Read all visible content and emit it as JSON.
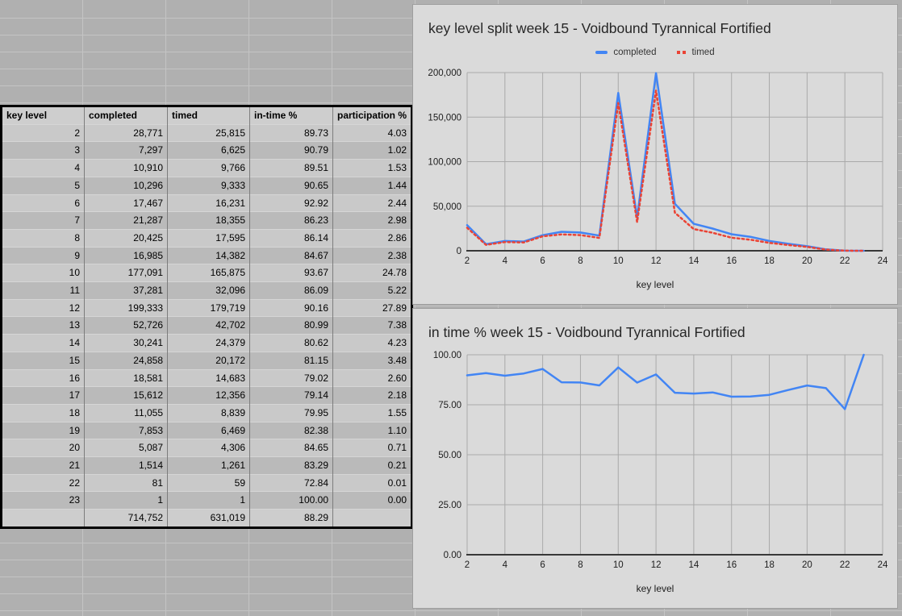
{
  "table": {
    "headers": [
      "key level",
      "completed",
      "timed",
      "in-time %",
      "participation %"
    ],
    "rows": [
      [
        "2",
        "28,771",
        "25,815",
        "89.73",
        "4.03"
      ],
      [
        "3",
        "7,297",
        "6,625",
        "90.79",
        "1.02"
      ],
      [
        "4",
        "10,910",
        "9,766",
        "89.51",
        "1.53"
      ],
      [
        "5",
        "10,296",
        "9,333",
        "90.65",
        "1.44"
      ],
      [
        "6",
        "17,467",
        "16,231",
        "92.92",
        "2.44"
      ],
      [
        "7",
        "21,287",
        "18,355",
        "86.23",
        "2.98"
      ],
      [
        "8",
        "20,425",
        "17,595",
        "86.14",
        "2.86"
      ],
      [
        "9",
        "16,985",
        "14,382",
        "84.67",
        "2.38"
      ],
      [
        "10",
        "177,091",
        "165,875",
        "93.67",
        "24.78"
      ],
      [
        "11",
        "37,281",
        "32,096",
        "86.09",
        "5.22"
      ],
      [
        "12",
        "199,333",
        "179,719",
        "90.16",
        "27.89"
      ],
      [
        "13",
        "52,726",
        "42,702",
        "80.99",
        "7.38"
      ],
      [
        "14",
        "30,241",
        "24,379",
        "80.62",
        "4.23"
      ],
      [
        "15",
        "24,858",
        "20,172",
        "81.15",
        "3.48"
      ],
      [
        "16",
        "18,581",
        "14,683",
        "79.02",
        "2.60"
      ],
      [
        "17",
        "15,612",
        "12,356",
        "79.14",
        "2.18"
      ],
      [
        "18",
        "11,055",
        "8,839",
        "79.95",
        "1.55"
      ],
      [
        "19",
        "7,853",
        "6,469",
        "82.38",
        "1.10"
      ],
      [
        "20",
        "5,087",
        "4,306",
        "84.65",
        "0.71"
      ],
      [
        "21",
        "1,514",
        "1,261",
        "83.29",
        "0.21"
      ],
      [
        "22",
        "81",
        "59",
        "72.84",
        "0.01"
      ],
      [
        "23",
        "1",
        "1",
        "100.00",
        "0.00"
      ]
    ],
    "total_row": [
      "",
      "714,752",
      "631,019",
      "88.29",
      ""
    ]
  },
  "chart_data": [
    {
      "type": "line",
      "title": "key level split week 15 - Voidbound Tyrannical Fortified",
      "xlabel": "key level",
      "legend_position": "top",
      "grid": true,
      "x": [
        2,
        3,
        4,
        5,
        6,
        7,
        8,
        9,
        10,
        11,
        12,
        13,
        14,
        15,
        16,
        17,
        18,
        19,
        20,
        21,
        22,
        23
      ],
      "xticks": [
        2,
        4,
        6,
        8,
        10,
        12,
        14,
        16,
        18,
        20,
        22,
        24
      ],
      "xlim": [
        2,
        24
      ],
      "ylim": [
        0,
        200000
      ],
      "yticks": [
        {
          "value": 0,
          "label": "0"
        },
        {
          "value": 50000,
          "label": "50,000"
        },
        {
          "value": 100000,
          "label": "100,000"
        },
        {
          "value": 150000,
          "label": "150,000"
        },
        {
          "value": 200000,
          "label": "200,000"
        }
      ],
      "series": [
        {
          "name": "completed",
          "color": "#4285f4",
          "style": "solid",
          "values": [
            28771,
            7297,
            10910,
            10296,
            17467,
            21287,
            20425,
            16985,
            177091,
            37281,
            199333,
            52726,
            30241,
            24858,
            18581,
            15612,
            11055,
            7853,
            5087,
            1514,
            81,
            1
          ]
        },
        {
          "name": "timed",
          "color": "#ea4335",
          "style": "dotted",
          "values": [
            25815,
            6625,
            9766,
            9333,
            16231,
            18355,
            17595,
            14382,
            165875,
            32096,
            179719,
            42702,
            24379,
            20172,
            14683,
            12356,
            8839,
            6469,
            4306,
            1261,
            59,
            1
          ]
        }
      ]
    },
    {
      "type": "line",
      "title": "in time % week 15 - Voidbound Tyrannical Fortified",
      "xlabel": "key level",
      "legend_position": "none",
      "grid": true,
      "x": [
        2,
        3,
        4,
        5,
        6,
        7,
        8,
        9,
        10,
        11,
        12,
        13,
        14,
        15,
        16,
        17,
        18,
        19,
        20,
        21,
        22,
        23
      ],
      "xticks": [
        2,
        4,
        6,
        8,
        10,
        12,
        14,
        16,
        18,
        20,
        22,
        24
      ],
      "xlim": [
        2,
        24
      ],
      "ylim": [
        0,
        100
      ],
      "yticks": [
        {
          "value": 0,
          "label": "0.00"
        },
        {
          "value": 25,
          "label": "25.00"
        },
        {
          "value": 50,
          "label": "50.00"
        },
        {
          "value": 75,
          "label": "75.00"
        },
        {
          "value": 100,
          "label": "100.00"
        }
      ],
      "series": [
        {
          "name": "in-time %",
          "color": "#4285f4",
          "style": "solid",
          "values": [
            89.73,
            90.79,
            89.51,
            90.65,
            92.92,
            86.23,
            86.14,
            84.67,
            93.67,
            86.09,
            90.16,
            80.99,
            80.62,
            81.15,
            79.02,
            79.14,
            79.95,
            82.38,
            84.65,
            83.29,
            72.84,
            100.0
          ]
        }
      ]
    }
  ],
  "colors": {
    "series_blue": "#4285f4",
    "series_red": "#ea4335"
  }
}
